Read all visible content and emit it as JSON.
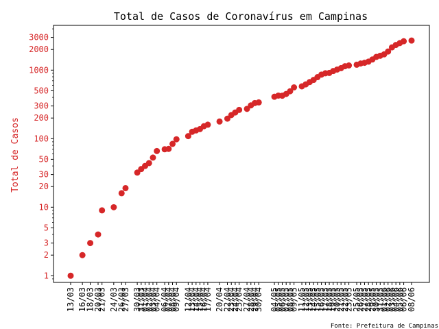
{
  "chart_data": {
    "type": "scatter",
    "title": "Total de Casos de Coronavírus em Campinas",
    "xlabel": "",
    "ylabel": "Total de Casos",
    "source": "Fonte: Prefeitura de Campinas",
    "y_scale": "log",
    "ylim": [
      0.8,
      4500
    ],
    "y_ticks": [
      1,
      2,
      3,
      5,
      10,
      20,
      30,
      50,
      100,
      200,
      300,
      500,
      1000,
      2000,
      3000
    ],
    "y_tick_labels": [
      "1",
      "2",
      "3",
      "5",
      "10",
      "20",
      "30",
      "50",
      "100",
      "200",
      "300",
      "500",
      "1000",
      "2000",
      "3000"
    ],
    "color": "#d62728",
    "points": [
      {
        "date": "13/03",
        "value": 1
      },
      {
        "date": "16/03",
        "value": 2
      },
      {
        "date": "18/03",
        "value": 3
      },
      {
        "date": "20/03",
        "value": 4
      },
      {
        "date": "21/03",
        "value": 9
      },
      {
        "date": "24/03",
        "value": 10
      },
      {
        "date": "26/03",
        "value": 16
      },
      {
        "date": "27/03",
        "value": 19
      },
      {
        "date": "30/03",
        "value": 32
      },
      {
        "date": "31/03",
        "value": 36
      },
      {
        "date": "01/04",
        "value": 40
      },
      {
        "date": "02/04",
        "value": 44
      },
      {
        "date": "03/04",
        "value": 53
      },
      {
        "date": "04/04",
        "value": 66
      },
      {
        "date": "06/04",
        "value": 70
      },
      {
        "date": "07/04",
        "value": 71
      },
      {
        "date": "08/04",
        "value": 84
      },
      {
        "date": "09/04",
        "value": 98
      },
      {
        "date": "12/04",
        "value": 109
      },
      {
        "date": "13/04",
        "value": 126
      },
      {
        "date": "14/04",
        "value": 132
      },
      {
        "date": "15/04",
        "value": 138
      },
      {
        "date": "16/04",
        "value": 152
      },
      {
        "date": "17/04",
        "value": 160
      },
      {
        "date": "20/04",
        "value": 178
      },
      {
        "date": "22/04",
        "value": 196
      },
      {
        "date": "23/04",
        "value": 221
      },
      {
        "date": "24/04",
        "value": 241
      },
      {
        "date": "25/04",
        "value": 263
      },
      {
        "date": "27/04",
        "value": 272
      },
      {
        "date": "28/04",
        "value": 306
      },
      {
        "date": "29/04",
        "value": 331
      },
      {
        "date": "30/04",
        "value": 338
      },
      {
        "date": "04/05",
        "value": 409
      },
      {
        "date": "05/05",
        "value": 425
      },
      {
        "date": "06/05",
        "value": 423
      },
      {
        "date": "07/05",
        "value": 449
      },
      {
        "date": "08/05",
        "value": 492
      },
      {
        "date": "09/05",
        "value": 560
      },
      {
        "date": "11/05",
        "value": 580
      },
      {
        "date": "12/05",
        "value": 620
      },
      {
        "date": "13/05",
        "value": 670
      },
      {
        "date": "14/05",
        "value": 720
      },
      {
        "date": "15/05",
        "value": 790
      },
      {
        "date": "16/05",
        "value": 860
      },
      {
        "date": "17/05",
        "value": 900
      },
      {
        "date": "18/05",
        "value": 910
      },
      {
        "date": "19/05",
        "value": 970
      },
      {
        "date": "20/05",
        "value": 1020
      },
      {
        "date": "21/05",
        "value": 1070
      },
      {
        "date": "22/05",
        "value": 1140
      },
      {
        "date": "23/05",
        "value": 1170
      },
      {
        "date": "25/05",
        "value": 1200
      },
      {
        "date": "26/05",
        "value": 1250
      },
      {
        "date": "27/05",
        "value": 1280
      },
      {
        "date": "28/05",
        "value": 1330
      },
      {
        "date": "29/05",
        "value": 1430
      },
      {
        "date": "30/05",
        "value": 1560
      },
      {
        "date": "31/05",
        "value": 1620
      },
      {
        "date": "01/06",
        "value": 1700
      },
      {
        "date": "02/06",
        "value": 1870
      },
      {
        "date": "03/06",
        "value": 2150
      },
      {
        "date": "04/06",
        "value": 2330
      },
      {
        "date": "05/06",
        "value": 2480
      },
      {
        "date": "06/06",
        "value": 2640
      },
      {
        "date": "08/06",
        "value": 2700
      }
    ]
  }
}
